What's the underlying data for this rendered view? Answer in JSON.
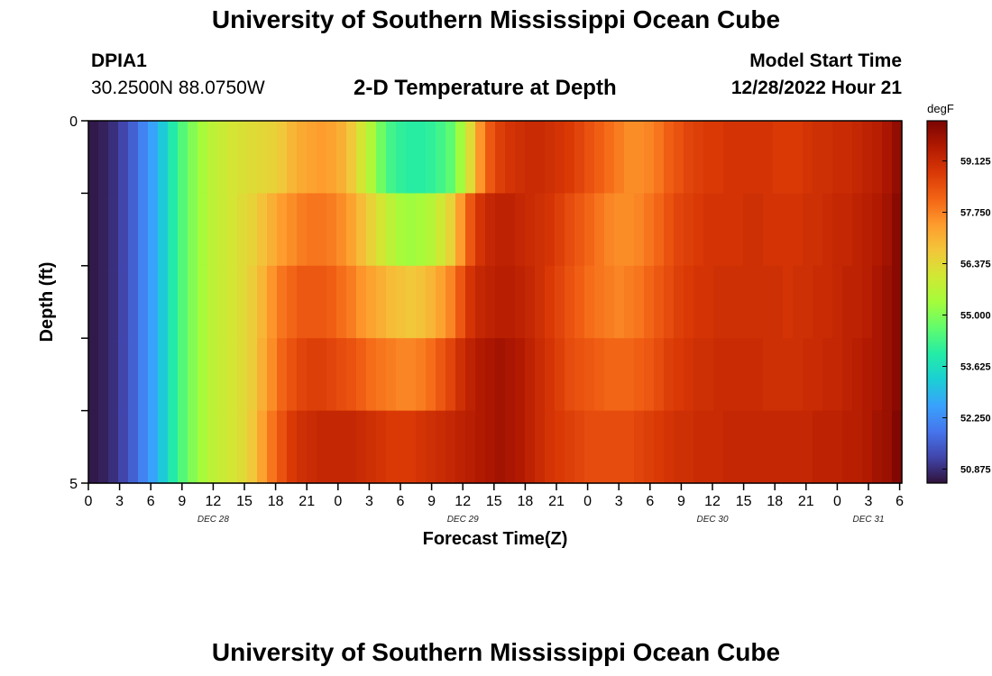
{
  "page": {
    "title": "University of Southern Mississippi Ocean Cube",
    "footer_title": "University of Southern Mississippi Ocean Cube",
    "station_id": "DPIA1",
    "coordinates": "30.2500N  88.0750W",
    "model_start_label": "Model Start Time",
    "model_start_value": "12/28/2022 Hour 21"
  },
  "chart_data": {
    "type": "heatmap",
    "title": "2-D Temperature at Depth",
    "xlabel": "Forecast Time(Z)",
    "ylabel": "Depth (ft)",
    "ylim": [
      0,
      5
    ],
    "y_ticks": [
      "0",
      "",
      "",
      "",
      "",
      "5"
    ],
    "x_tick_labels": [
      "0",
      "3",
      "6",
      "9",
      "12",
      "15",
      "18",
      "21",
      "0",
      "3",
      "6",
      "9",
      "12",
      "15",
      "18",
      "21",
      "0",
      "3",
      "6",
      "9",
      "12",
      "15",
      "18",
      "21",
      "0",
      "3",
      "6"
    ],
    "date_labels": [
      {
        "text": "DEC 28",
        "at_tick": 4
      },
      {
        "text": "DEC 29",
        "at_tick": 12
      },
      {
        "text": "DEC 30",
        "at_tick": 20
      },
      {
        "text": "DEC 31",
        "at_tick": 25
      }
    ],
    "colorbar": {
      "unit": "degF",
      "min": 50.5,
      "max": 60.2,
      "labels": [
        59.125,
        57.75,
        56.375,
        55.0,
        53.625,
        52.25,
        50.875
      ],
      "colors": [
        "#30123b",
        "#4145ab",
        "#4675ed",
        "#39a2fc",
        "#1bcfd4",
        "#24eca6",
        "#61fc6c",
        "#a4fc3b",
        "#d1e834",
        "#f3c63a",
        "#fe9b2d",
        "#f36315",
        "#d93806",
        "#b11901",
        "#7a0402"
      ]
    },
    "depth_layers": 5,
    "time_steps": 82,
    "time_values_hours_from_start": [
      0,
      1,
      2,
      3,
      4,
      5,
      6,
      7,
      8,
      9,
      10,
      11,
      12,
      13,
      14,
      15,
      16,
      17,
      18,
      19,
      20,
      21,
      22,
      23,
      24,
      25,
      26,
      27,
      28,
      29,
      30,
      31,
      32,
      33,
      34,
      35,
      36,
      37,
      38,
      39,
      40,
      41,
      42,
      43,
      44,
      45,
      46,
      47,
      48,
      49,
      50,
      51,
      52,
      53,
      54,
      55,
      56,
      57,
      58,
      59,
      60,
      61,
      62,
      63,
      64,
      65,
      66,
      67,
      68,
      69,
      70,
      71,
      72,
      73,
      74,
      75,
      76,
      77,
      78,
      79,
      80,
      81
    ],
    "temperature_degF_by_layer": [
      [
        50.6,
        50.7,
        50.9,
        51.2,
        51.6,
        52.1,
        52.6,
        53.2,
        53.9,
        54.5,
        55.0,
        55.4,
        55.7,
        55.9,
        56.1,
        56.2,
        56.3,
        56.4,
        56.5,
        56.7,
        57.0,
        57.2,
        57.3,
        57.4,
        57.3,
        57.1,
        56.7,
        56.1,
        55.5,
        54.8,
        54.3,
        54.1,
        54.0,
        54.0,
        54.1,
        54.3,
        54.6,
        55.3,
        56.3,
        57.5,
        58.3,
        58.7,
        58.9,
        59.0,
        59.1,
        59.1,
        59.0,
        58.9,
        58.8,
        58.6,
        58.4,
        58.2,
        58.0,
        57.8,
        57.6,
        57.6,
        57.7,
        57.9,
        58.2,
        58.4,
        58.6,
        58.7,
        58.8,
        58.8,
        58.9,
        58.9,
        58.9,
        58.9,
        58.9,
        58.8,
        58.8,
        58.8,
        58.9,
        59.0,
        59.0,
        59.1,
        59.1,
        59.2,
        59.3,
        59.4,
        59.6,
        59.9
      ],
      [
        50.6,
        50.7,
        50.9,
        51.2,
        51.6,
        52.1,
        52.6,
        53.2,
        53.9,
        54.5,
        55.0,
        55.4,
        55.7,
        55.9,
        56.1,
        56.3,
        56.5,
        56.8,
        57.1,
        57.4,
        57.6,
        57.8,
        57.9,
        57.9,
        57.8,
        57.6,
        57.3,
        56.9,
        56.5,
        56.1,
        55.7,
        55.4,
        55.3,
        55.4,
        55.6,
        56.0,
        56.5,
        57.4,
        58.3,
        58.9,
        59.2,
        59.3,
        59.3,
        59.2,
        59.1,
        59.0,
        58.9,
        58.7,
        58.5,
        58.3,
        58.1,
        57.9,
        57.7,
        57.6,
        57.6,
        57.7,
        57.9,
        58.1,
        58.4,
        58.6,
        58.7,
        58.8,
        58.9,
        58.9,
        58.9,
        58.9,
        59.0,
        59.0,
        58.9,
        58.9,
        58.9,
        58.9,
        59.0,
        59.0,
        59.1,
        59.2,
        59.2,
        59.3,
        59.4,
        59.5,
        59.7,
        60.0
      ],
      [
        50.6,
        50.7,
        50.9,
        51.2,
        51.6,
        52.1,
        52.6,
        53.2,
        53.9,
        54.5,
        55.0,
        55.4,
        55.7,
        55.9,
        56.1,
        56.3,
        56.6,
        57.0,
        57.5,
        57.9,
        58.1,
        58.3,
        58.3,
        58.3,
        58.2,
        58.0,
        57.8,
        57.5,
        57.3,
        57.1,
        56.9,
        56.8,
        56.7,
        56.8,
        57.0,
        57.3,
        57.7,
        58.3,
        58.9,
        59.2,
        59.3,
        59.4,
        59.4,
        59.3,
        59.2,
        59.0,
        58.8,
        58.6,
        58.4,
        58.2,
        58.0,
        57.9,
        57.8,
        57.7,
        57.8,
        57.9,
        58.1,
        58.3,
        58.5,
        58.7,
        58.8,
        58.9,
        58.9,
        59.0,
        59.0,
        59.0,
        59.0,
        59.0,
        59.0,
        59.0,
        58.9,
        59.0,
        59.0,
        59.1,
        59.1,
        59.2,
        59.3,
        59.3,
        59.4,
        59.6,
        59.8,
        60.0
      ],
      [
        50.6,
        50.7,
        50.9,
        51.2,
        51.6,
        52.1,
        52.6,
        53.2,
        53.9,
        54.5,
        55.0,
        55.4,
        55.7,
        55.9,
        56.1,
        56.3,
        56.6,
        57.1,
        57.6,
        58.1,
        58.4,
        58.6,
        58.7,
        58.7,
        58.6,
        58.5,
        58.4,
        58.2,
        58.0,
        57.9,
        57.8,
        57.7,
        57.7,
        57.8,
        58.0,
        58.3,
        58.6,
        59.0,
        59.3,
        59.5,
        59.6,
        59.7,
        59.6,
        59.5,
        59.3,
        59.1,
        58.9,
        58.7,
        58.5,
        58.4,
        58.3,
        58.2,
        58.1,
        58.1,
        58.1,
        58.2,
        58.3,
        58.5,
        58.7,
        58.8,
        58.9,
        59.0,
        59.0,
        59.1,
        59.1,
        59.1,
        59.1,
        59.1,
        59.0,
        59.0,
        59.0,
        59.0,
        59.1,
        59.1,
        59.2,
        59.2,
        59.3,
        59.4,
        59.5,
        59.6,
        59.8,
        60.0
      ],
      [
        50.6,
        50.7,
        50.9,
        51.2,
        51.6,
        52.1,
        52.6,
        53.2,
        53.9,
        54.5,
        55.0,
        55.4,
        55.7,
        55.9,
        56.1,
        56.3,
        56.7,
        57.3,
        57.9,
        58.4,
        58.8,
        59.0,
        59.1,
        59.2,
        59.2,
        59.2,
        59.2,
        59.1,
        59.0,
        58.9,
        58.8,
        58.8,
        58.8,
        58.9,
        59.0,
        59.1,
        59.2,
        59.3,
        59.4,
        59.5,
        59.6,
        59.7,
        59.6,
        59.5,
        59.3,
        59.1,
        58.9,
        58.8,
        58.7,
        58.6,
        58.5,
        58.5,
        58.5,
        58.5,
        58.5,
        58.6,
        58.7,
        58.8,
        58.9,
        59.0,
        59.0,
        59.1,
        59.1,
        59.1,
        59.2,
        59.2,
        59.2,
        59.2,
        59.2,
        59.2,
        59.2,
        59.2,
        59.2,
        59.3,
        59.3,
        59.3,
        59.4,
        59.4,
        59.5,
        59.7,
        59.8,
        60.1
      ]
    ]
  }
}
